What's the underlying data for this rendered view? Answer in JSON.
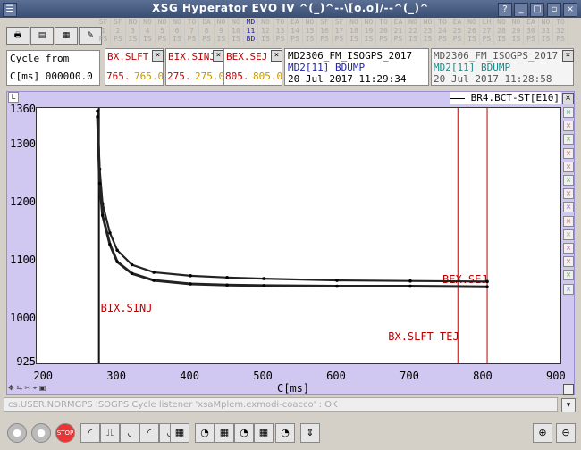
{
  "window": {
    "title": "XSG Hyperator EVO IV  ^(_)^--\\[o.o]/--^(_)^"
  },
  "selector_cells": [
    {
      "l1": "SF",
      "l2": "1",
      "l3": "PS",
      "active": false
    },
    {
      "l1": "SF",
      "l2": "2",
      "l3": "PS",
      "active": false
    },
    {
      "l1": "NO",
      "l2": "3",
      "l3": "IS",
      "active": false
    },
    {
      "l1": "NO",
      "l2": "4",
      "l3": "IS",
      "active": false
    },
    {
      "l1": "NO",
      "l2": "5",
      "l3": "PS",
      "active": false
    },
    {
      "l1": "NO",
      "l2": "6",
      "l3": "IS",
      "active": false
    },
    {
      "l1": "TO",
      "l2": "7",
      "l3": "PS",
      "active": false
    },
    {
      "l1": "EA",
      "l2": "8",
      "l3": "PS",
      "active": false
    },
    {
      "l1": "NO",
      "l2": "9",
      "l3": "IS",
      "active": false
    },
    {
      "l1": "NO",
      "l2": "10",
      "l3": "IS",
      "active": false
    },
    {
      "l1": "MD",
      "l2": "11",
      "l3": "BD",
      "active": true
    },
    {
      "l1": "NO",
      "l2": "12",
      "l3": "IS",
      "active": false
    },
    {
      "l1": "TO",
      "l2": "13",
      "l3": "PS",
      "active": false
    },
    {
      "l1": "EA",
      "l2": "14",
      "l3": "PS",
      "active": false
    },
    {
      "l1": "NO",
      "l2": "15",
      "l3": "IS",
      "active": false
    },
    {
      "l1": "SF",
      "l2": "16",
      "l3": "PS",
      "active": false
    },
    {
      "l1": "SF",
      "l2": "17",
      "l3": "PS",
      "active": false
    },
    {
      "l1": "NO",
      "l2": "18",
      "l3": "IS",
      "active": false
    },
    {
      "l1": "NO",
      "l2": "19",
      "l3": "IS",
      "active": false
    },
    {
      "l1": "TO",
      "l2": "20",
      "l3": "PS",
      "active": false
    },
    {
      "l1": "EA",
      "l2": "21",
      "l3": "PS",
      "active": false
    },
    {
      "l1": "NO",
      "l2": "22",
      "l3": "IS",
      "active": false
    },
    {
      "l1": "NO",
      "l2": "23",
      "l3": "IS",
      "active": false
    },
    {
      "l1": "TO",
      "l2": "24",
      "l3": "PS",
      "active": false
    },
    {
      "l1": "EA",
      "l2": "25",
      "l3": "PS",
      "active": false
    },
    {
      "l1": "NO",
      "l2": "26",
      "l3": "IS",
      "active": false
    },
    {
      "l1": "LH",
      "l2": "27",
      "l3": "PS",
      "active": false
    },
    {
      "l1": "NO",
      "l2": "28",
      "l3": "IS",
      "active": false
    },
    {
      "l1": "NO",
      "l2": "29",
      "l3": "IS",
      "active": false
    },
    {
      "l1": "EA",
      "l2": "30",
      "l3": "PS",
      "active": false
    },
    {
      "l1": "NO",
      "l2": "31",
      "l3": "IS",
      "active": false
    },
    {
      "l1": "TO",
      "l2": "32",
      "l3": "PS",
      "active": false
    }
  ],
  "cycle": {
    "label": "Cycle from",
    "value": "C[ms] 000000.0"
  },
  "channels": [
    {
      "name": "BX.SLFT",
      "v1": "765.",
      "v2": "765.0"
    },
    {
      "name": "BIX.SINJ",
      "v1": "275.",
      "v2": "275.0"
    },
    {
      "name": "BEX.SEJ",
      "v1": "805.",
      "v2": "805.0"
    }
  ],
  "user_left": {
    "line1": "MD2306_FM_ISOGPS_2017",
    "line2": "MD2[11] BDUMP",
    "date": "20 Jul 2017 11:29:34"
  },
  "user_right": {
    "line1": "MD2306_FM_ISOGPS_2017",
    "line2": "MD2[11] BDUMP",
    "date": "20 Jul 2017 11:28:58"
  },
  "status_text": "cs.USER.NORMGPS ISOGPS Cycle listener 'xsaMplem.exmodi-coacco' : OK",
  "chart_data": {
    "type": "line",
    "legend": "BR4.BCT-ST[E10]",
    "xlabel": "C[ms]",
    "xlim": [
      190,
      905
    ],
    "ylim": [
      925,
      1365
    ],
    "xticks": [
      200,
      300,
      400,
      500,
      600,
      700,
      800,
      900
    ],
    "yticks": [
      925,
      1000,
      1100,
      1200,
      1300,
      1360
    ],
    "series": [
      {
        "values": [
          [
            273,
            1360
          ],
          [
            276,
            1260
          ],
          [
            280,
            1200
          ],
          [
            290,
            1150
          ],
          [
            300,
            1120
          ],
          [
            320,
            1095
          ],
          [
            350,
            1082
          ],
          [
            400,
            1076
          ],
          [
            450,
            1073
          ],
          [
            500,
            1071
          ],
          [
            600,
            1068
          ],
          [
            700,
            1067
          ],
          [
            805,
            1066
          ]
        ]
      },
      {
        "values": [
          [
            273,
            1350
          ],
          [
            276,
            1235
          ],
          [
            280,
            1180
          ],
          [
            290,
            1130
          ],
          [
            300,
            1100
          ],
          [
            320,
            1080
          ],
          [
            350,
            1068
          ],
          [
            400,
            1062
          ],
          [
            450,
            1060
          ],
          [
            500,
            1059
          ],
          [
            600,
            1058
          ],
          [
            700,
            1058
          ],
          [
            805,
            1057
          ]
        ]
      }
    ],
    "markers": [
      {
        "x": 275,
        "label": "BIX.SINJ"
      },
      {
        "x": 765,
        "label": "BX.SLFT-TEJ"
      },
      {
        "x": 805,
        "label": "BEX.SEJ"
      }
    ]
  },
  "colors": {
    "marker": "#c00000",
    "series": "#222222",
    "active": "#2323a8"
  }
}
